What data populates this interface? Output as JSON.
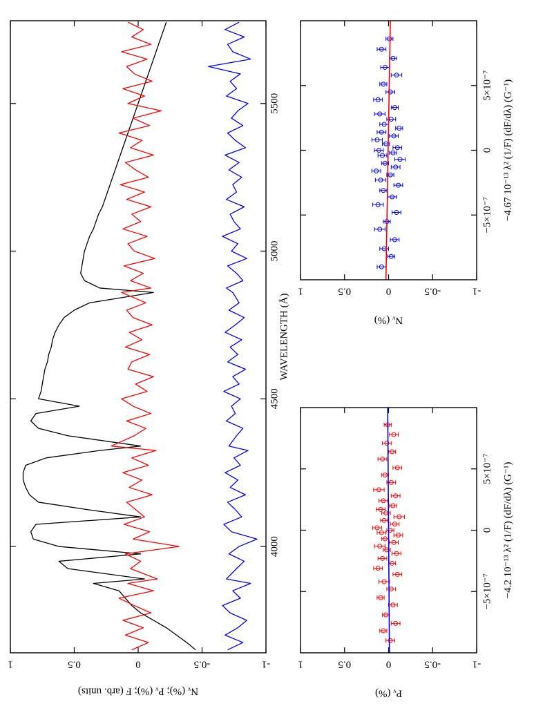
{
  "chart_data": [
    {
      "type": "line",
      "xlabel": "WAVELENGTH (Å)",
      "ylabel": "Nᵥ (%);  Pᵥ (%);  F (arb. units)",
      "xlim": [
        3640,
        5780
      ],
      "xticks": [
        4000,
        4500,
        5000,
        5500
      ],
      "ylim": [
        -1,
        1
      ],
      "yticks": [
        1,
        0.5,
        0,
        -0.5,
        -1
      ],
      "x": [
        3650,
        3675,
        3700,
        3725,
        3750,
        3775,
        3800,
        3825,
        3850,
        3875,
        3890,
        3925,
        3950,
        3975,
        4000,
        4025,
        4050,
        4075,
        4100,
        4125,
        4150,
        4175,
        4200,
        4225,
        4250,
        4275,
        4300,
        4325,
        4340,
        4375,
        4400,
        4425,
        4450,
        4475,
        4500,
        4525,
        4550,
        4575,
        4600,
        4625,
        4650,
        4675,
        4700,
        4725,
        4750,
        4775,
        4800,
        4825,
        4860,
        4875,
        4900,
        4925,
        4950,
        4975,
        5000,
        5025,
        5050,
        5075,
        5100,
        5125,
        5150,
        5175,
        5200,
        5225,
        5250,
        5275,
        5300,
        5325,
        5350,
        5375,
        5400,
        5425,
        5450,
        5475,
        5500,
        5525,
        5550,
        5575,
        5600,
        5625,
        5650,
        5675,
        5700,
        5725,
        5750,
        5775
      ],
      "series": [
        {
          "color": "#000000",
          "values": [
            -0.45,
            -0.38,
            -0.3,
            -0.22,
            -0.12,
            -0.02,
            0.05,
            0.1,
            0.15,
            0.35,
            -0.05,
            0.55,
            0.62,
            -0.02,
            0.62,
            0.82,
            0.84,
            0.8,
            -0.02,
            0.4,
            0.78,
            0.85,
            0.88,
            0.9,
            0.9,
            0.88,
            0.72,
            0.3,
            -0.02,
            0.55,
            0.78,
            0.84,
            0.8,
            0.46,
            0.78,
            0.76,
            0.75,
            0.74,
            0.73,
            0.71,
            0.7,
            0.68,
            0.67,
            0.65,
            0.62,
            0.58,
            0.5,
            0.38,
            -0.12,
            0.3,
            0.42,
            0.45,
            0.44,
            0.43,
            0.42,
            0.4,
            0.38,
            0.35,
            0.33,
            0.31,
            0.28,
            0.26,
            0.24,
            0.22,
            0.2,
            0.18,
            0.16,
            0.14,
            0.12,
            0.1,
            0.08,
            0.06,
            0.04,
            0.02,
            0.0,
            -0.02,
            -0.04,
            -0.06,
            -0.08,
            -0.1,
            -0.12,
            -0.14,
            -0.16,
            -0.18,
            -0.2,
            -0.22
          ]
        },
        {
          "color": "#ff0000",
          "values": [
            0.05,
            -0.08,
            0.1,
            -0.04,
            0.12,
            -0.1,
            0.03,
            0.15,
            -0.12,
            0.08,
            -0.15,
            0.06,
            -0.02,
            0.1,
            -0.32,
            0.04,
            -0.09,
            0.11,
            -0.05,
            0.02,
            0.09,
            -0.11,
            0.07,
            -0.03,
            0.12,
            -0.08,
            0.05,
            -0.14,
            0.21,
            0.03,
            -0.06,
            0.09,
            -0.1,
            0.04,
            0.13,
            -0.07,
            0.02,
            -0.12,
            0.08,
            0.05,
            -0.09,
            0.1,
            -0.03,
            0.07,
            -0.11,
            0.04,
            0.09,
            -0.06,
            0.13,
            -0.1,
            0.06,
            -0.04,
            0.11,
            -0.13,
            0.03,
            0.08,
            -0.07,
            0.12,
            -0.02,
            0.05,
            -0.1,
            0.09,
            -0.05,
            0.14,
            -0.08,
            0.02,
            0.1,
            -0.12,
            0.06,
            -0.03,
            0.15,
            -0.09,
            0.04,
            -0.18,
            0.08,
            -0.05,
            0.12,
            -0.11,
            0.03,
            0.09,
            -0.07,
            0.13,
            -0.1,
            0.05,
            -0.04,
            0.08
          ]
        },
        {
          "color": "#0000ff",
          "values": [
            -0.7,
            -0.82,
            -0.68,
            -0.78,
            -0.85,
            -0.72,
            -0.66,
            -0.8,
            -0.74,
            -0.88,
            -0.69,
            -0.77,
            -0.83,
            -0.71,
            -0.79,
            -0.93,
            -0.73,
            -0.67,
            -0.81,
            -0.76,
            -0.7,
            -0.84,
            -0.72,
            -0.78,
            -0.68,
            -0.8,
            -0.75,
            -0.86,
            -0.71,
            -0.77,
            -0.82,
            -0.69,
            -0.76,
            -0.73,
            -0.8,
            -0.67,
            -0.79,
            -0.74,
            -0.84,
            -0.7,
            -0.78,
            -0.72,
            -0.81,
            -0.68,
            -0.76,
            -0.83,
            -0.71,
            -0.79,
            -0.74,
            -0.69,
            -0.82,
            -0.77,
            -0.7,
            -0.85,
            -0.73,
            -0.78,
            -0.66,
            -0.8,
            -0.75,
            -0.72,
            -0.83,
            -0.69,
            -0.77,
            -0.74,
            -0.81,
            -0.71,
            -0.79,
            -0.68,
            -0.84,
            -0.76,
            -0.7,
            -0.82,
            -0.73,
            -0.78,
            -0.86,
            -0.69,
            -0.77,
            -0.72,
            -0.8,
            -0.55,
            -0.88,
            -0.74,
            -0.7,
            -0.83,
            -0.68,
            -0.79
          ]
        }
      ]
    },
    {
      "type": "scatter",
      "xlabel": "−4.67 10⁻¹³ λ² (1/F) (dF/dλ) (G⁻¹)",
      "ylabel": "Nᵥ (%)",
      "xlim": [
        -1e-06,
        1e-06
      ],
      "xticks": [
        {
          "value": -5e-07,
          "label": "−5×10⁻⁷"
        },
        0,
        {
          "value": 5e-07,
          "label": "5×10⁻⁷"
        }
      ],
      "ylim": [
        -1,
        1
      ],
      "yticks": [
        1,
        0.5,
        0,
        -0.5,
        -1
      ],
      "color": "#0000ff",
      "x": [
        -9e-07,
        -8.2e-07,
        -7.6e-07,
        -6.9e-07,
        -6.1e-07,
        -5.5e-07,
        -4.8e-07,
        -4.2e-07,
        -3.6e-07,
        -3.1e-07,
        -2.7e-07,
        -2.3e-07,
        -1.9e-07,
        -1.6e-07,
        -1.3e-07,
        -1e-07,
        -7e-08,
        -4e-08,
        -2e-08,
        0,
        2e-08,
        5e-08,
        8e-08,
        1.1e-07,
        1.4e-07,
        1.7e-07,
        2e-07,
        2.4e-07,
        2.8e-07,
        3.3e-07,
        3.9e-07,
        4.5e-07,
        5.1e-07,
        5.8e-07,
        6.4e-07,
        7.1e-07,
        7.8e-07,
        8.6e-07
      ],
      "values": [
        0.08,
        -0.03,
        0.05,
        -0.07,
        0.1,
        0.02,
        -0.09,
        0.12,
        -0.04,
        0.06,
        -0.11,
        0.09,
        -0.02,
        0.14,
        -0.08,
        0.04,
        -0.13,
        0.07,
        -0.05,
        0.11,
        -0.1,
        0.03,
        0.13,
        -0.06,
        0.08,
        -0.12,
        0.05,
        -0.03,
        0.1,
        -0.07,
        0.12,
        -0.02,
        0.06,
        -0.09,
        0.04,
        -0.05,
        0.08,
        -0.01
      ],
      "errors": [
        0.05,
        0.04,
        0.05,
        0.05,
        0.06,
        0.04,
        0.05,
        0.06,
        0.05,
        0.04,
        0.05,
        0.06,
        0.04,
        0.05,
        0.05,
        0.04,
        0.06,
        0.05,
        0.04,
        0.05,
        0.05,
        0.04,
        0.06,
        0.05,
        0.05,
        0.04,
        0.05,
        0.05,
        0.06,
        0.04,
        0.05,
        0.05,
        0.04,
        0.06,
        0.05,
        0.04,
        0.05,
        0.04
      ],
      "fit": {
        "color": "#ff0000",
        "x": [
          -1e-06,
          1e-06
        ],
        "values": [
          0.03,
          -0.02
        ]
      }
    },
    {
      "type": "scatter",
      "xlabel": "−4.2 10⁻¹³ λ² (1/F) (dF/dλ) (G⁻¹)",
      "ylabel": "Pᵥ (%)",
      "xlim": [
        -1e-06,
        1e-06
      ],
      "xticks": [
        {
          "value": -5e-07,
          "label": "−5×10⁻⁷"
        },
        0,
        {
          "value": 5e-07,
          "label": "5×10⁻⁷"
        }
      ],
      "ylim": [
        -1,
        1
      ],
      "yticks": [
        1,
        0.5,
        0,
        -0.5,
        -1
      ],
      "color": "#ff0000",
      "x": [
        -9e-07,
        -8.2e-07,
        -7.6e-07,
        -6.9e-07,
        -6.1e-07,
        -5.5e-07,
        -4.8e-07,
        -4.2e-07,
        -3.6e-07,
        -3.1e-07,
        -2.7e-07,
        -2.3e-07,
        -1.9e-07,
        -1.6e-07,
        -1.3e-07,
        -1e-07,
        -7e-08,
        -4e-08,
        -2e-08,
        0,
        2e-08,
        5e-08,
        8e-08,
        1.1e-07,
        1.4e-07,
        1.7e-07,
        2e-07,
        2.4e-07,
        2.8e-07,
        3.3e-07,
        3.9e-07,
        4.5e-07,
        5.1e-07,
        5.8e-07,
        6.4e-07,
        7.1e-07,
        7.8e-07,
        8.6e-07
      ],
      "values": [
        -0.02,
        0.06,
        -0.08,
        0.03,
        -0.05,
        0.09,
        -0.03,
        0.05,
        -0.1,
        0.12,
        -0.04,
        0.07,
        -0.09,
        0.02,
        0.1,
        -0.06,
        0.04,
        -0.11,
        0.08,
        -0.02,
        0.13,
        -0.07,
        0.05,
        -0.12,
        0.03,
        0.09,
        -0.05,
        0.06,
        -0.08,
        0.11,
        -0.03,
        0.04,
        -0.1,
        0.07,
        -0.04,
        0.02,
        -0.06,
        0.01
      ],
      "errors": [
        0.05,
        0.04,
        0.05,
        0.04,
        0.05,
        0.04,
        0.05,
        0.06,
        0.05,
        0.05,
        0.04,
        0.05,
        0.05,
        0.04,
        0.06,
        0.05,
        0.04,
        0.05,
        0.05,
        0.04,
        0.05,
        0.05,
        0.04,
        0.06,
        0.05,
        0.05,
        0.04,
        0.05,
        0.05,
        0.06,
        0.05,
        0.04,
        0.05,
        0.05,
        0.04,
        0.05,
        0.05,
        0.04
      ],
      "fit": {
        "color": "#0000ff",
        "x": [
          -1e-06,
          1e-06
        ],
        "values": [
          -0.01,
          0.01
        ]
      }
    }
  ]
}
